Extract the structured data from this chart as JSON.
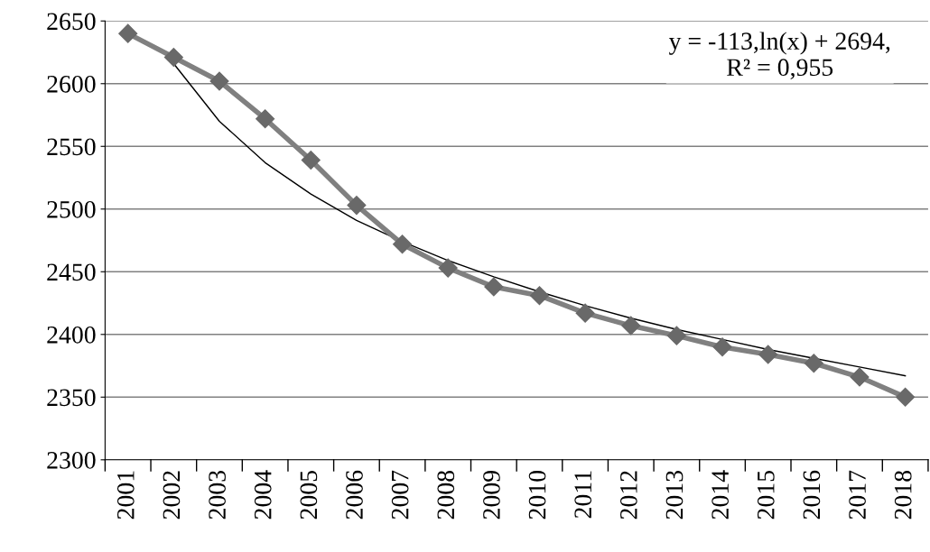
{
  "chart_data": {
    "type": "line",
    "categories": [
      "2001",
      "2002",
      "2003",
      "2004",
      "2005",
      "2006",
      "2007",
      "2008",
      "2009",
      "2010",
      "2011",
      "2012",
      "2013",
      "2014",
      "2015",
      "2016",
      "2017",
      "2018"
    ],
    "series": [
      {
        "color": "#808080",
        "marker": "diamond",
        "values": [
          2640,
          2621,
          2602,
          2572,
          2539,
          2503,
          2472,
          2453,
          2438,
          2431,
          2417,
          2407,
          2399,
          2390,
          2384,
          2377,
          2366,
          2350
        ]
      },
      {
        "color": "#000000",
        "marker": "none",
        "values": [
          null,
          2616,
          2570,
          2537,
          2512,
          2491,
          2474,
          2459,
          2446,
          2434,
          2423,
          2413,
          2404,
          2396,
          2388,
          2381,
          2374,
          2367
        ]
      }
    ],
    "ylim": [
      2300,
      2650
    ],
    "yticks": [
      2300,
      2350,
      2400,
      2450,
      2500,
      2550,
      2600,
      2650
    ],
    "grid": "y",
    "legend": false,
    "annotations": [
      "y = -113,ln(x) + 2694,\nR² = 0,955"
    ]
  }
}
